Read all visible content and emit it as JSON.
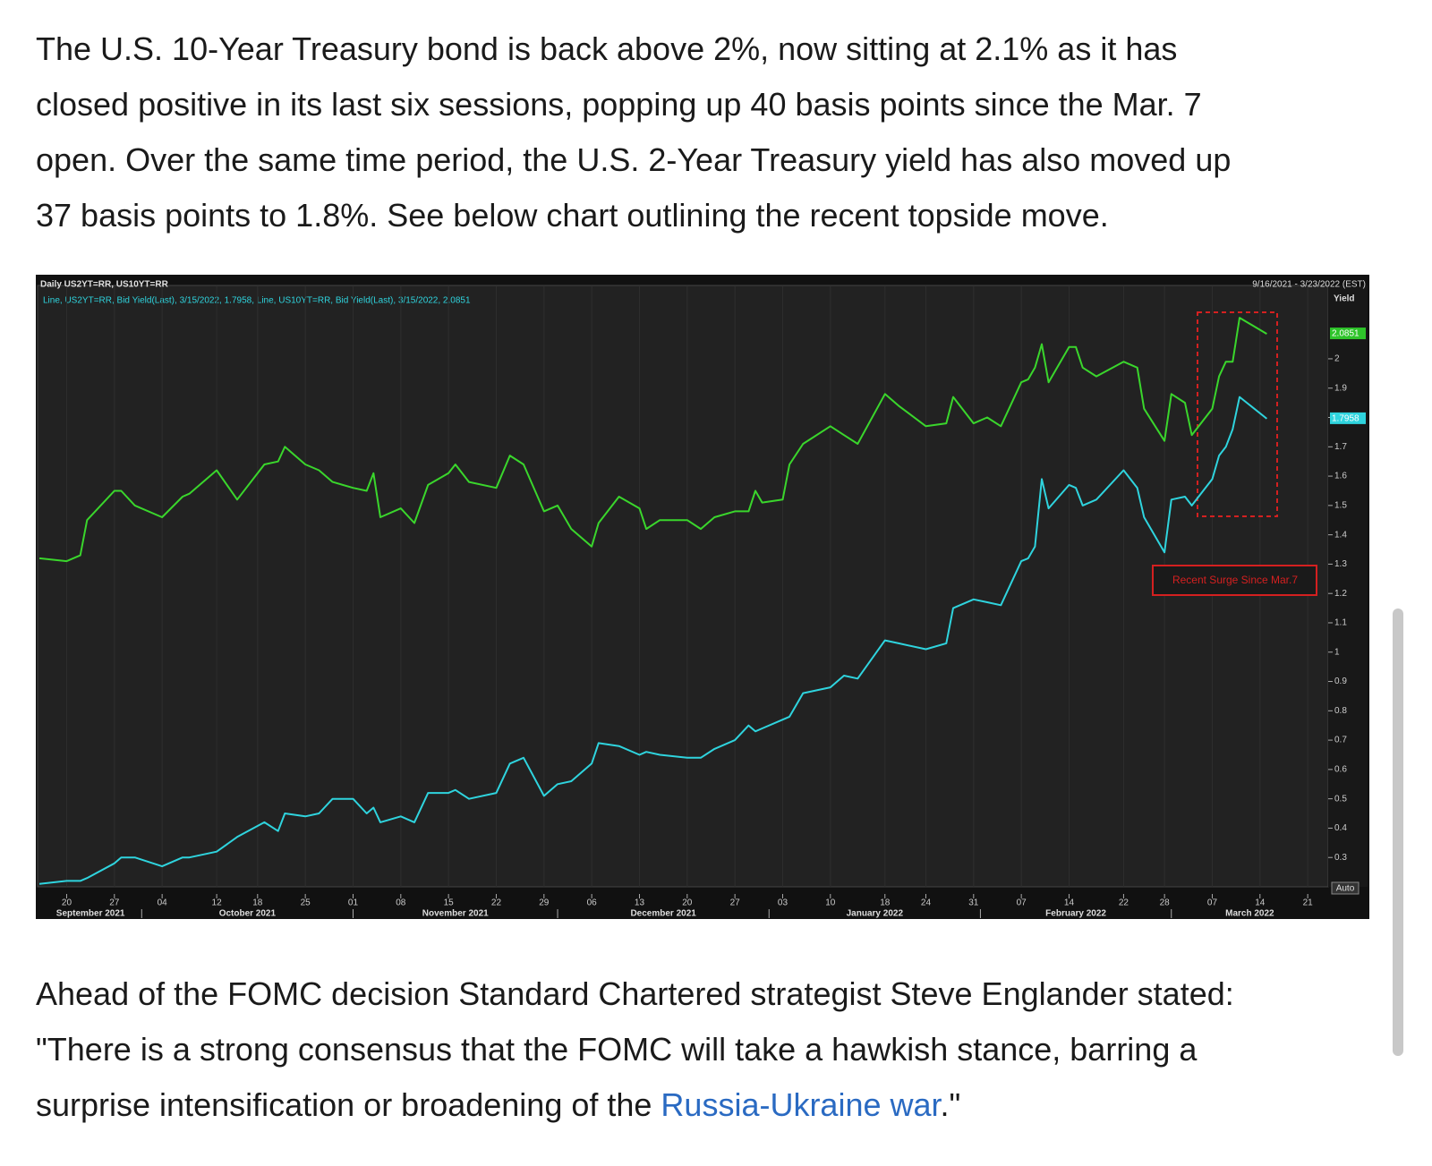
{
  "article": {
    "paragraph_1": [
      "The U.S. 10-Year Treasury bond is back above 2%, now sitting at 2.1% as it has",
      "closed positive in its last six sessions, popping up 40 basis points since the Mar. 7",
      "open. Over the same time period, the U.S. 2-Year Treasury yield has also moved up",
      "37 basis points to 1.8%. See below chart outlining the recent topside move."
    ],
    "paragraph_2": [
      "Ahead of the FOMC decision Standard Chartered strategist Steve Englander stated:",
      "\"There is a strong consensus that the FOMC will take a hawkish stance, barring a"
    ],
    "paragraph_2_end": {
      "text": "surprise intensification or broadening of the ",
      "link": "Russia-Ukraine war",
      "end": ".\""
    }
  },
  "chart_data": {
    "type": "line",
    "title": "Daily US2YT=RR, US10YT=RR",
    "subtitle": "Line, US2YT=RR, Bid Yield(Last), 3/15/2022, 1.7958, Line, US10YT=RR, Bid Yield(Last), 3/15/2022, 2.0851",
    "date_range": "9/16/2021 - 3/23/2022 (EST)",
    "y_label": "Yield",
    "scale_label": "Auto",
    "annotation": "Recent Surge Since Mar.7",
    "annotation_color": "#d42020",
    "grid": "x",
    "x": [
      "2021-09-16",
      "2021-09-20",
      "2021-09-22",
      "2021-09-23",
      "2021-09-27",
      "2021-09-28",
      "2021-09-30",
      "2021-10-04",
      "2021-10-07",
      "2021-10-08",
      "2021-10-12",
      "2021-10-15",
      "2021-10-19",
      "2021-10-21",
      "2021-10-22",
      "2021-10-25",
      "2021-10-27",
      "2021-10-29",
      "2021-11-01",
      "2021-11-03",
      "2021-11-04",
      "2021-11-05",
      "2021-11-08",
      "2021-11-10",
      "2021-11-12",
      "2021-11-15",
      "2021-11-16",
      "2021-11-18",
      "2021-11-22",
      "2021-11-24",
      "2021-11-26",
      "2021-11-29",
      "2021-12-01",
      "2021-12-03",
      "2021-12-06",
      "2021-12-07",
      "2021-12-10",
      "2021-12-13",
      "2021-12-14",
      "2021-12-16",
      "2021-12-20",
      "2021-12-22",
      "2021-12-24",
      "2021-12-27",
      "2021-12-29",
      "2021-12-30",
      "2021-12-31",
      "2022-01-03",
      "2022-01-04",
      "2022-01-06",
      "2022-01-10",
      "2022-01-12",
      "2022-01-14",
      "2022-01-18",
      "2022-01-20",
      "2022-01-24",
      "2022-01-27",
      "2022-01-28",
      "2022-01-31",
      "2022-02-02",
      "2022-02-04",
      "2022-02-07",
      "2022-02-08",
      "2022-02-09",
      "2022-02-10",
      "2022-02-11",
      "2022-02-14",
      "2022-02-15",
      "2022-02-16",
      "2022-02-18",
      "2022-02-22",
      "2022-02-24",
      "2022-02-25",
      "2022-02-28",
      "2022-03-01",
      "2022-03-03",
      "2022-03-04",
      "2022-03-07",
      "2022-03-08",
      "2022-03-09",
      "2022-03-10",
      "2022-03-11",
      "2022-03-15"
    ],
    "series": [
      {
        "color": "#2fd4de",
        "label_color": "#2fd4de",
        "values": [
          0.21,
          0.22,
          0.22,
          0.23,
          0.28,
          0.3,
          0.3,
          0.27,
          0.3,
          0.3,
          0.32,
          0.37,
          0.42,
          0.39,
          0.45,
          0.44,
          0.45,
          0.5,
          0.5,
          0.45,
          0.47,
          0.42,
          0.44,
          0.42,
          0.52,
          0.52,
          0.53,
          0.5,
          0.52,
          0.62,
          0.64,
          0.51,
          0.55,
          0.56,
          0.62,
          0.69,
          0.68,
          0.65,
          0.66,
          0.65,
          0.64,
          0.64,
          0.67,
          0.7,
          0.75,
          0.73,
          0.74,
          0.77,
          0.78,
          0.86,
          0.88,
          0.92,
          0.91,
          1.04,
          1.03,
          1.01,
          1.03,
          1.15,
          1.18,
          1.17,
          1.16,
          1.31,
          1.32,
          1.36,
          1.59,
          1.49,
          1.57,
          1.56,
          1.5,
          1.52,
          1.62,
          1.56,
          1.46,
          1.34,
          1.52,
          1.53,
          1.5,
          1.59,
          1.67,
          1.7,
          1.76,
          1.87,
          1.7958
        ]
      },
      {
        "color": "#3ad62c",
        "label_color": "#2ec42a",
        "values": [
          1.32,
          1.31,
          1.33,
          1.45,
          1.55,
          1.55,
          1.5,
          1.46,
          1.53,
          1.54,
          1.62,
          1.52,
          1.64,
          1.65,
          1.7,
          1.64,
          1.62,
          1.58,
          1.56,
          1.55,
          1.61,
          1.46,
          1.49,
          1.44,
          1.57,
          1.61,
          1.64,
          1.58,
          1.56,
          1.67,
          1.64,
          1.48,
          1.5,
          1.42,
          1.36,
          1.44,
          1.53,
          1.49,
          1.42,
          1.45,
          1.45,
          1.42,
          1.46,
          1.48,
          1.48,
          1.55,
          1.51,
          1.52,
          1.64,
          1.71,
          1.77,
          1.74,
          1.71,
          1.88,
          1.84,
          1.77,
          1.78,
          1.87,
          1.78,
          1.8,
          1.77,
          1.92,
          1.93,
          1.97,
          2.05,
          1.92,
          2.04,
          2.04,
          1.97,
          1.94,
          1.99,
          1.97,
          1.83,
          1.72,
          1.88,
          1.85,
          1.74,
          1.83,
          1.94,
          1.99,
          1.99,
          2.14,
          2.0851
        ]
      }
    ],
    "ylim": [
      0.2,
      2.25
    ],
    "yticks": [
      0.3,
      0.4,
      0.5,
      0.6,
      0.7,
      0.8,
      0.9,
      1,
      1.1,
      1.2,
      1.3,
      1.4,
      1.5,
      1.6,
      1.7,
      1.8,
      1.9,
      2
    ],
    "xlim": [
      "2021-09-16",
      "2022-03-24"
    ],
    "xticks": [
      {
        "value": "2021-09-20",
        "label": "20"
      },
      {
        "value": "2021-09-27",
        "label": "27"
      },
      {
        "value": "2021-10-04",
        "label": "04"
      },
      {
        "value": "2021-10-12",
        "label": "12"
      },
      {
        "value": "2021-10-18",
        "label": "18"
      },
      {
        "value": "2021-10-25",
        "label": "25"
      },
      {
        "value": "2021-11-01",
        "label": "01"
      },
      {
        "value": "2021-11-08",
        "label": "08"
      },
      {
        "value": "2021-11-15",
        "label": "15"
      },
      {
        "value": "2021-11-22",
        "label": "22"
      },
      {
        "value": "2021-11-29",
        "label": "29"
      },
      {
        "value": "2021-12-06",
        "label": "06"
      },
      {
        "value": "2021-12-13",
        "label": "13"
      },
      {
        "value": "2021-12-20",
        "label": "20"
      },
      {
        "value": "2021-12-27",
        "label": "27"
      },
      {
        "value": "2022-01-03",
        "label": "03"
      },
      {
        "value": "2022-01-10",
        "label": "10"
      },
      {
        "value": "2022-01-18",
        "label": "18"
      },
      {
        "value": "2022-01-24",
        "label": "24"
      },
      {
        "value": "2022-01-31",
        "label": "31"
      },
      {
        "value": "2022-02-07",
        "label": "07"
      },
      {
        "value": "2022-02-14",
        "label": "14"
      },
      {
        "value": "2022-02-22",
        "label": "22"
      },
      {
        "value": "2022-02-28",
        "label": "28"
      },
      {
        "value": "2022-03-07",
        "label": "07"
      },
      {
        "value": "2022-03-14",
        "label": "14"
      },
      {
        "value": "2022-03-21",
        "label": "21"
      }
    ],
    "month_labels": [
      {
        "value": "2021-09",
        "label": "September 2021"
      },
      {
        "value": "2021-10",
        "label": "October 2021"
      },
      {
        "value": "2021-11",
        "label": "November 2021"
      },
      {
        "value": "2021-12",
        "label": "December 2021"
      },
      {
        "value": "2022-01",
        "label": "January 2022"
      },
      {
        "value": "2022-02",
        "label": "February 2022"
      },
      {
        "value": "2022-03",
        "label": "March 2022"
      }
    ]
  }
}
